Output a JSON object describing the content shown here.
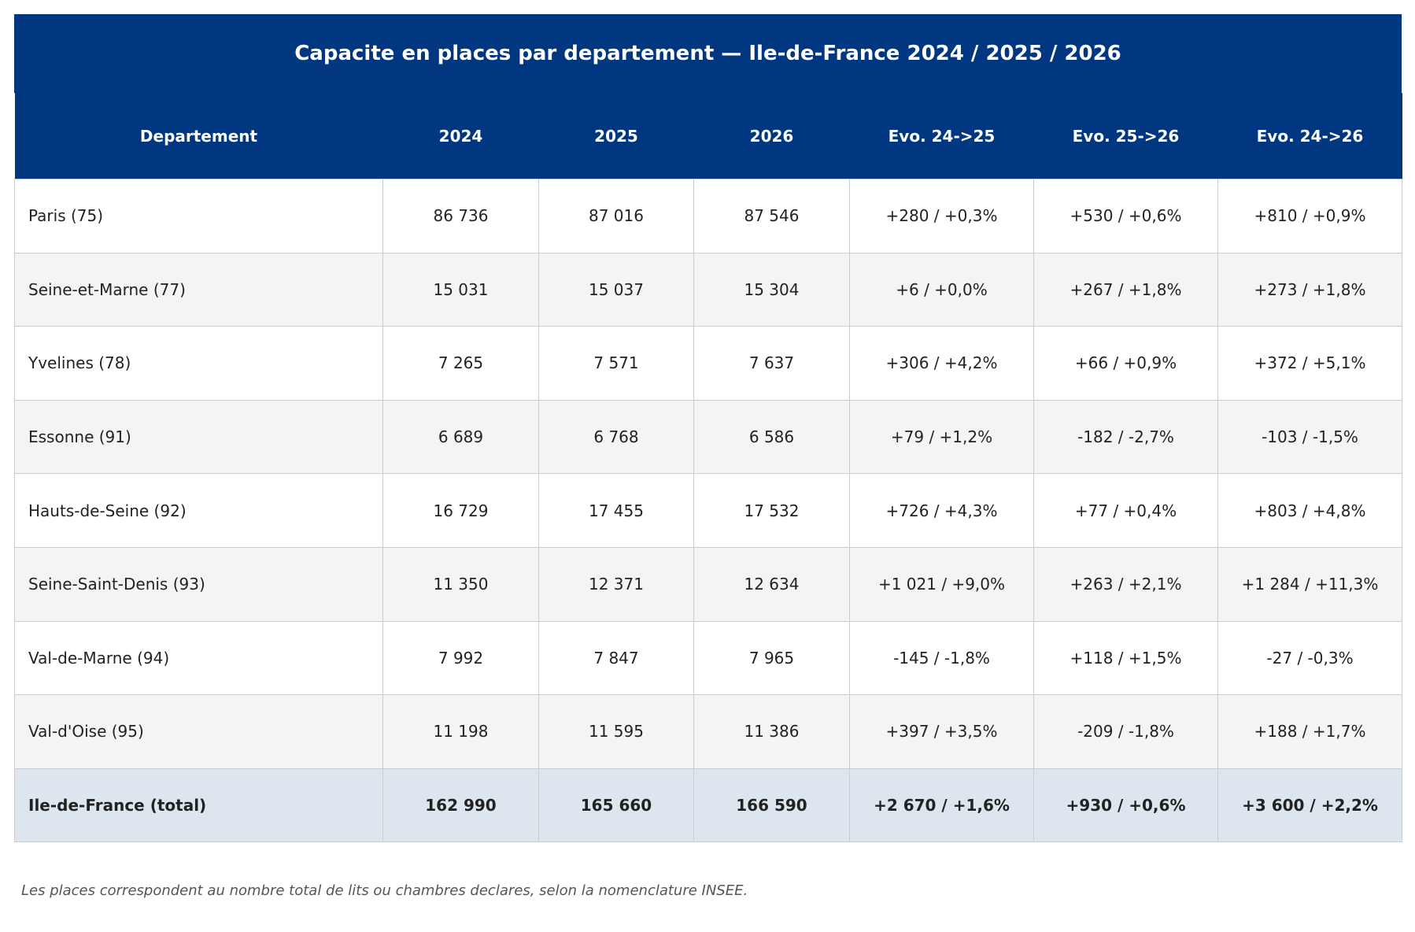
{
  "title": "Capacite en places par departement — Ile-de-France 2024 / 2025 / 2026",
  "columns": [
    "Departement",
    "2024",
    "2025",
    "2026",
    "Evo. 24->25",
    "Evo. 25->26",
    "Evo. 24->26"
  ],
  "rows": [
    [
      "Paris (75)",
      "86 736",
      "87 016",
      "87 546",
      "+280 / +0,3%",
      "+530 / +0,6%",
      "+810 / +0,9%"
    ],
    [
      "Seine-et-Marne (77)",
      "15 031",
      "15 037",
      "15 304",
      "+6 / +0,0%",
      "+267 / +1,8%",
      "+273 / +1,8%"
    ],
    [
      "Yvelines (78)",
      "7 265",
      "7 571",
      "7 637",
      "+306 / +4,2%",
      "+66 / +0,9%",
      "+372 / +5,1%"
    ],
    [
      "Essonne (91)",
      "6 689",
      "6 768",
      "6 586",
      "+79 / +1,2%",
      "-182 / -2,7%",
      "-103 / -1,5%"
    ],
    [
      "Hauts-de-Seine (92)",
      "16 729",
      "17 455",
      "17 532",
      "+726 / +4,3%",
      "+77 / +0,4%",
      "+803 / +4,8%"
    ],
    [
      "Seine-Saint-Denis (93)",
      "11 350",
      "12 371",
      "12 634",
      "+1 021 / +9,0%",
      "+263 / +2,1%",
      "+1 284 / +11,3%"
    ],
    [
      "Val-de-Marne (94)",
      "7 992",
      "7 847",
      "7 965",
      "-145 / -1,8%",
      "+118 / +1,5%",
      "-27 / -0,3%"
    ],
    [
      "Val-d'Oise (95)",
      "11 198",
      "11 595",
      "11 386",
      "+397 / +3,5%",
      "-209 / -1,8%",
      "+188 / +1,7%"
    ]
  ],
  "total": [
    "Ile-de-France (total)",
    "162 990",
    "165 660",
    "166 590",
    "+2 670 / +1,6%",
    "+930 / +0,6%",
    "+3 600 / +2,2%"
  ],
  "note": "Les places correspondent au nombre total de lits ou chambres declares, selon la nomenclature INSEE.",
  "colors": {
    "header_bg": "#003780",
    "header_text": "#ffffff",
    "row_alt_bg": "#f4f4f4",
    "total_bg": "#dde5ef",
    "grid": "#cccccc"
  }
}
